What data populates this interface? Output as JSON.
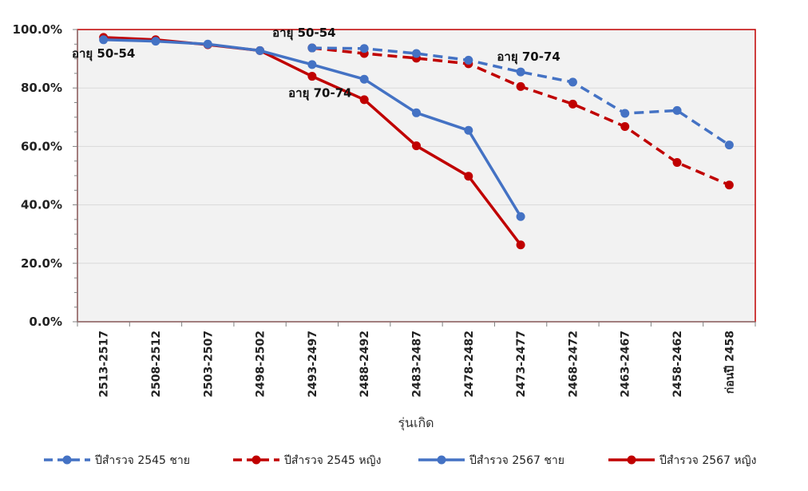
{
  "chart_data": {
    "type": "line",
    "xlabel": "รุ่นเกิด",
    "ylabel": "",
    "ylim": [
      0,
      100
    ],
    "y_ticks": [
      "0.0%",
      "20.0%",
      "40.0%",
      "60.0%",
      "80.0%",
      "100.0%"
    ],
    "y_tick_values": [
      0,
      20,
      40,
      60,
      80,
      100
    ],
    "grid": true,
    "legend_position": "bottom",
    "categories": [
      "2513-2517",
      "2508-2512",
      "2503-2507",
      "2498-2502",
      "2493-2497",
      "2488-2492",
      "2483-2487",
      "2478-2482",
      "2473-2477",
      "2468-2472",
      "2463-2467",
      "2458-2462",
      "ก่อนปี 2458"
    ],
    "series": [
      {
        "name": "ปีสำรวจ 2545 ชาย",
        "color": "#4472C4",
        "dashed": true,
        "values": [
          null,
          null,
          null,
          null,
          93.7,
          93.5,
          91.8,
          89.5,
          85.5,
          82.0,
          71.3,
          72.3,
          60.5
        ]
      },
      {
        "name": "ปีสำรวจ 2545 หญิง",
        "color": "#C00000",
        "dashed": true,
        "values": [
          null,
          null,
          null,
          null,
          93.7,
          91.8,
          90.2,
          88.3,
          80.5,
          74.5,
          66.8,
          54.5,
          46.8
        ]
      },
      {
        "name": "ปีสำรวจ 2567 ชาย",
        "color": "#4472C4",
        "dashed": false,
        "values": [
          96.5,
          96.0,
          95.0,
          92.8,
          88.0,
          83.0,
          71.5,
          65.5,
          36.0,
          null,
          null,
          null,
          null
        ]
      },
      {
        "name": "ปีสำรวจ 2567 หญิง",
        "color": "#C00000",
        "dashed": false,
        "values": [
          97.3,
          96.5,
          94.8,
          92.8,
          84.0,
          76.0,
          60.2,
          49.8,
          26.3,
          null,
          null,
          null,
          null
        ]
      }
    ],
    "annotations": [
      {
        "text": "อายุ 50-54",
        "category_index": 0,
        "near_value": 96.5
      },
      {
        "text": "อายุ 50-54",
        "category_index": 4,
        "near_value": 93.7
      },
      {
        "text": "อายุ 70-74",
        "category_index": 4,
        "near_value": 84.0
      },
      {
        "text": "อายุ 70-74",
        "category_index": 8,
        "near_value": 85.5
      }
    ],
    "plot_background": "#F2F2F2",
    "axis_frame_color": "#C00000"
  }
}
